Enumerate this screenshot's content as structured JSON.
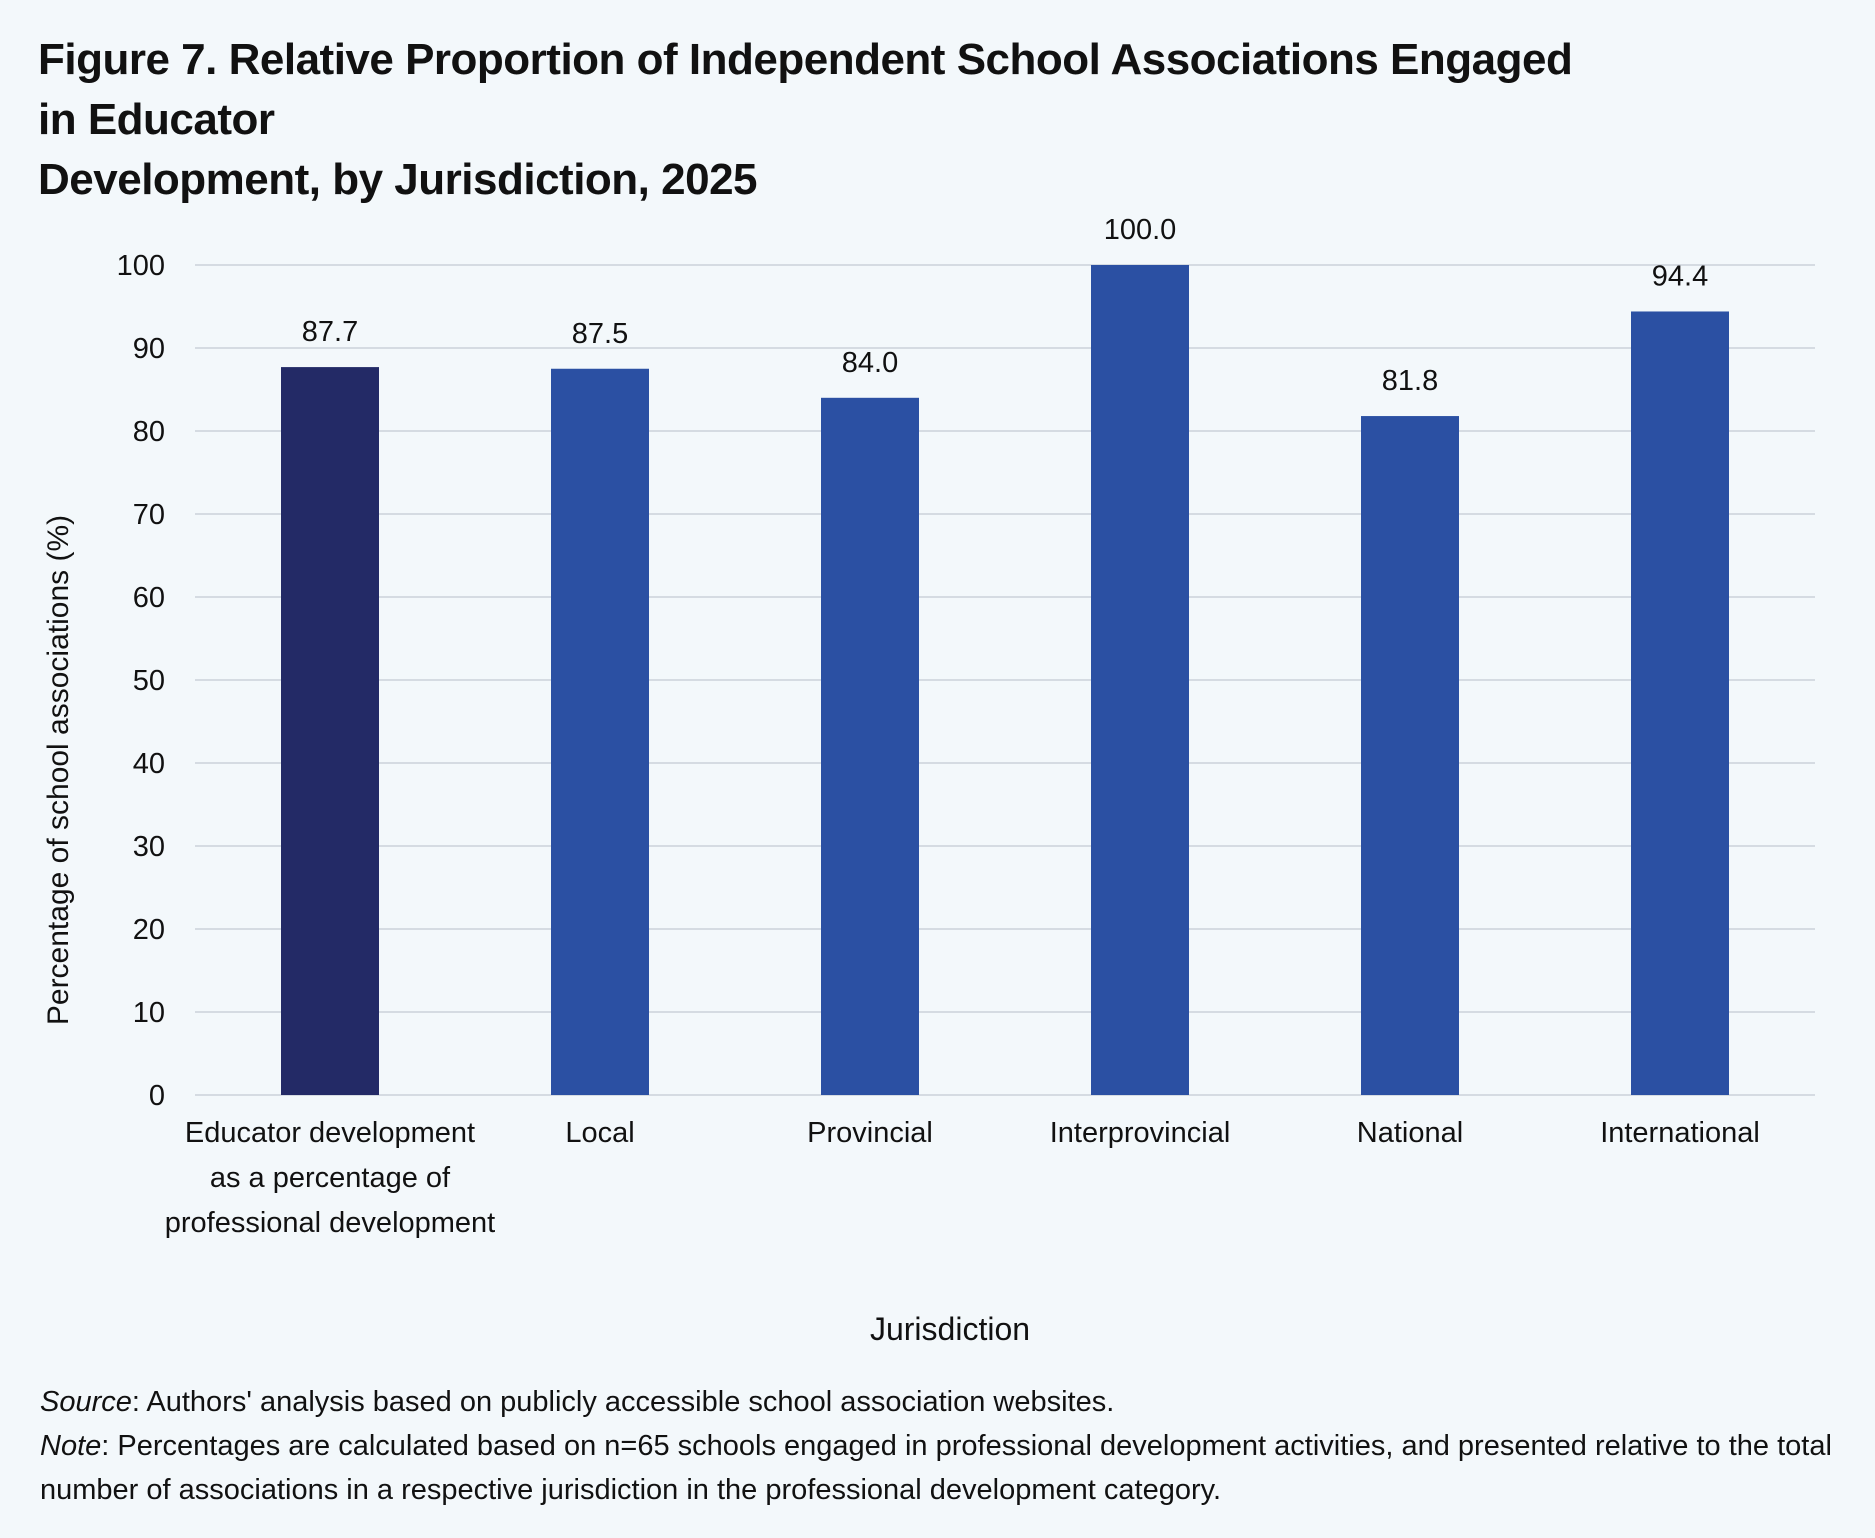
{
  "title_line1": "Figure 7. Relative Proportion of Independent School Associations Engaged in Educator",
  "title_line2": "Development, by Jurisdiction, 2025",
  "footer": {
    "source_label": "Source",
    "source_text": ": Authors' analysis based on publicly accessible school association websites.",
    "note_label": "Note",
    "note_text": ": Percentages are calculated based on n=65 schools engaged in professional development activities, and presented relative to the total number of associations in a respective jurisdiction in the professional development category."
  },
  "colors": {
    "first_bar": "#232a66",
    "bar": "#2b50a3",
    "grid": "#d5dbe2",
    "background": "#f3f8fb"
  },
  "chart_data": {
    "type": "bar",
    "categories": [
      [
        "Educator development",
        "as a percentage of",
        "professional development"
      ],
      [
        "Local"
      ],
      [
        "Provincial"
      ],
      [
        "Interprovincial"
      ],
      [
        "National"
      ],
      [
        "International"
      ]
    ],
    "values": [
      87.7,
      87.5,
      84.0,
      100.0,
      81.8,
      94.4
    ],
    "value_labels": [
      "87.7",
      "87.5",
      "84.0",
      "100.0",
      "81.8",
      "94.4"
    ],
    "xlabel": "Jurisdiction",
    "ylabel": "Percentage of school associations (%)",
    "ylim": [
      0,
      100
    ],
    "yticks": [
      0,
      10,
      20,
      30,
      40,
      50,
      60,
      70,
      80,
      90,
      100
    ],
    "grid": true,
    "legend": "none"
  }
}
